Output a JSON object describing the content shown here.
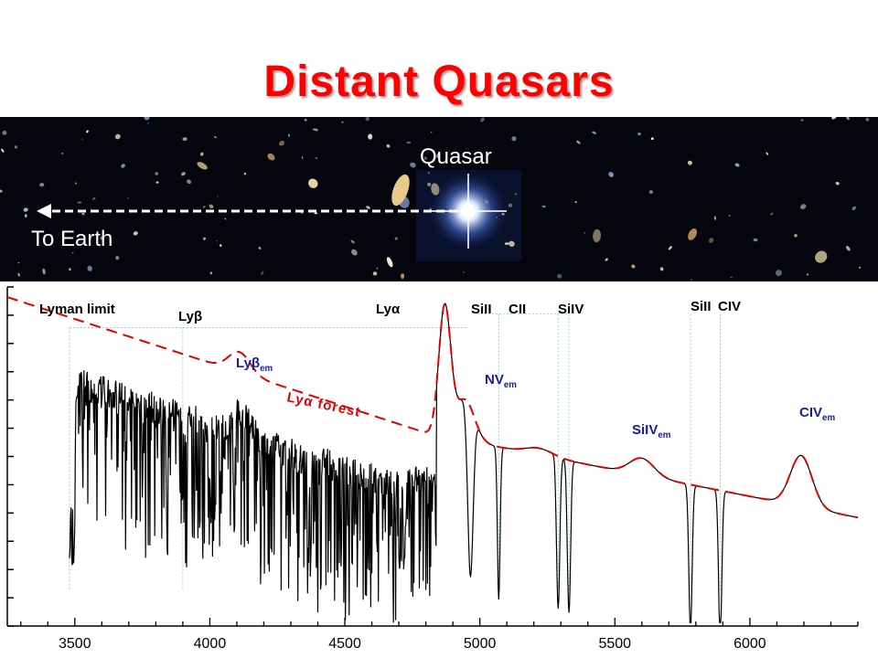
{
  "slide": {
    "title": "Distant Quasars"
  },
  "image_panel": {
    "quasar_label": "Quasar",
    "earth_label": "To Earth"
  },
  "colors": {
    "title": "#ff0000",
    "line_labels": "#000000",
    "emission_labels": "#1a1aa6",
    "forest_label": "#e00000",
    "continuum": "#e00000",
    "spectrum": "#000000",
    "guide_lines": "#8ad0e0"
  },
  "chart_data": {
    "type": "line",
    "title": "",
    "xlabel": "",
    "ylabel": "",
    "xlim": [
      3250,
      6400
    ],
    "x_ticks": [
      3500,
      4000,
      4500,
      5000,
      5500,
      6000
    ],
    "x_tick_labels": [
      "3500",
      "4000",
      "4500",
      "5000",
      "5500",
      "6000"
    ],
    "y_ticks_unlabeled": 13,
    "grid": false,
    "series": [
      {
        "style": "solid-black",
        "description_points": [
          [
            3480,
            22
          ],
          [
            3600,
            58
          ],
          [
            3800,
            60
          ],
          [
            4000,
            57
          ],
          [
            4100,
            60
          ],
          [
            4300,
            55
          ],
          [
            4500,
            48
          ],
          [
            4650,
            36
          ],
          [
            4700,
            46
          ],
          [
            4800,
            45
          ],
          [
            4850,
            93
          ],
          [
            4870,
            97
          ],
          [
            4900,
            70
          ],
          [
            4950,
            60
          ],
          [
            5000,
            50
          ],
          [
            5200,
            45
          ],
          [
            5400,
            41
          ],
          [
            5600,
            44
          ],
          [
            5700,
            40
          ],
          [
            5900,
            37
          ],
          [
            6100,
            33
          ],
          [
            6190,
            48
          ],
          [
            6300,
            33
          ],
          [
            6400,
            32
          ]
        ]
      },
      {
        "style": "dashed-red",
        "description_points": [
          [
            3250,
            97
          ],
          [
            3500,
            86
          ],
          [
            3800,
            78
          ],
          [
            4000,
            73
          ],
          [
            4300,
            64
          ],
          [
            4500,
            60
          ],
          [
            4700,
            57
          ],
          [
            4800,
            62
          ],
          [
            4870,
            97
          ],
          [
            4950,
            65
          ],
          [
            5000,
            52
          ],
          [
            5200,
            46
          ],
          [
            5400,
            42
          ],
          [
            5600,
            44
          ],
          [
            5800,
            39
          ],
          [
            6000,
            36
          ],
          [
            6190,
            48
          ],
          [
            6300,
            33
          ],
          [
            6400,
            32
          ]
        ]
      }
    ],
    "absorption_line_labels": [
      {
        "text": "Lyman limit",
        "x": 3480
      },
      {
        "text": "Lyβ",
        "x": 3900
      },
      {
        "text": "Lyα",
        "x": 4800
      },
      {
        "text": "SiII",
        "x": 4960
      },
      {
        "text": "CII",
        "x": 5070
      },
      {
        "text": "SiIV",
        "x": 5320
      },
      {
        "text": "SiII",
        "x": 5800
      },
      {
        "text": "CIV",
        "x": 5890
      }
    ],
    "emission_labels": [
      {
        "base": "Lyβ",
        "sub": "em"
      },
      {
        "base": "NV",
        "sub": "em"
      },
      {
        "base": "SiIV",
        "sub": "em"
      },
      {
        "base": "CIV",
        "sub": "em"
      }
    ],
    "annotations": [
      "Lyα forest"
    ]
  }
}
